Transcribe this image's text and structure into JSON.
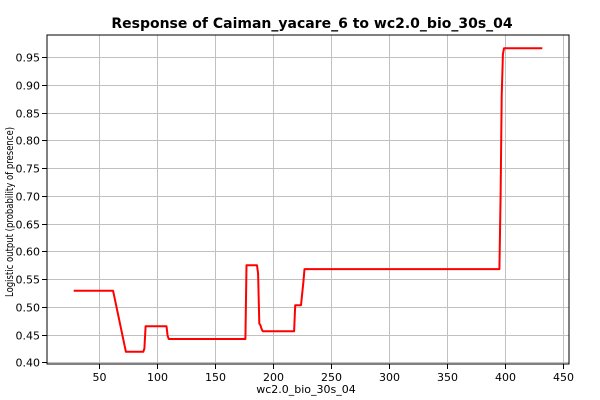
{
  "chart_data": {
    "type": "line",
    "title": "Response of Caiman_yacare_6 to wc2.0_bio_30s_04",
    "xlabel": "wc2.0_bio_30s_04",
    "ylabel": "Logistic output (probability of presence)",
    "xlim": [
      5,
      455
    ],
    "ylim": [
      0.397,
      0.99
    ],
    "xticks": [
      50,
      100,
      150,
      200,
      250,
      300,
      350,
      400,
      450
    ],
    "xtick_labels": [
      "50",
      "100",
      "150",
      "200",
      "250",
      "300",
      "350",
      "400",
      "450"
    ],
    "yticks": [
      0.4,
      0.45,
      0.5,
      0.55,
      0.6,
      0.65,
      0.7,
      0.75,
      0.8,
      0.85,
      0.9,
      0.95
    ],
    "ytick_labels": [
      "0.40",
      "0.45",
      "0.50",
      "0.55",
      "0.60",
      "0.65",
      "0.70",
      "0.75",
      "0.80",
      "0.85",
      "0.90",
      "0.95"
    ],
    "grid": true,
    "line_color": "#ff0000",
    "series": [
      {
        "x": [
          28,
          62,
          73,
          88,
          89,
          90,
          108,
          109,
          110,
          176,
          177,
          186,
          187,
          188,
          189,
          190,
          191,
          218,
          219,
          224,
          226,
          227,
          395,
          396,
          397,
          398,
          399,
          432
        ],
        "y": [
          0.529,
          0.529,
          0.419,
          0.419,
          0.425,
          0.465,
          0.465,
          0.448,
          0.442,
          0.442,
          0.575,
          0.575,
          0.56,
          0.47,
          0.467,
          0.46,
          0.456,
          0.456,
          0.503,
          0.503,
          0.545,
          0.568,
          0.568,
          0.7,
          0.88,
          0.955,
          0.966,
          0.966
        ]
      }
    ]
  }
}
